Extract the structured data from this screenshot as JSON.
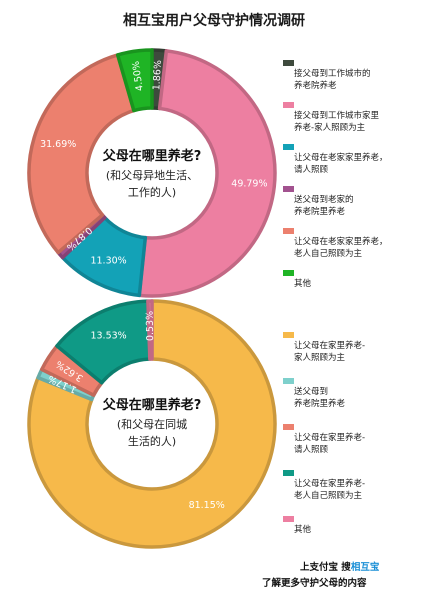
{
  "title": "相互宝用户父母守护情况调研",
  "chart_data": [
    {
      "type": "pie",
      "center_text": {
        "question": "父母在哪里养老?",
        "line1": "(和父母异地生活、",
        "line2": "工作的人)"
      },
      "slices": [
        {
          "label": "接父母到工作城市的\n养老院养老",
          "value": 1.86,
          "display": "1.86%",
          "color": "#3e4a3d"
        },
        {
          "label": "接父母到工作城市家里\n养老-家人照顾为主",
          "value": 49.79,
          "display": "49.79%",
          "color": "#ed7fa1"
        },
        {
          "label": "让父母在老家家里养老，\n请人照顾",
          "value": 11.3,
          "display": "11.30%",
          "color": "#13a2b7"
        },
        {
          "label": "送父母到老家的\n养老院里养老",
          "value": 0.87,
          "display": "0.87%",
          "color": "#a2528f"
        },
        {
          "label": "让父母在老家家里养老，\n老人自己照顾为主",
          "value": 31.69,
          "display": "31.69%",
          "color": "#ec806e"
        },
        {
          "label": "其他",
          "value": 4.5,
          "display": "4.50%",
          "color": "#1fb425"
        }
      ]
    },
    {
      "type": "pie",
      "center_text": {
        "question": "父母在哪里养老?",
        "line1": "(和父母在同城",
        "line2": "生活的人)"
      },
      "slices": [
        {
          "label": "让父母在家里养老-\n家人照顾为主",
          "value": 81.15,
          "display": "81.15%",
          "color": "#f6b94a"
        },
        {
          "label": "送父母到\n养老院里养老",
          "value": 1.17,
          "display": "1.17%",
          "color": "#7ed0cc"
        },
        {
          "label": "让父母在家里养老-\n请人照顾",
          "value": 3.62,
          "display": "3.62%",
          "color": "#ec806e"
        },
        {
          "label": "让父母在家里养老-\n老人自己照顾为主",
          "value": 13.53,
          "display": "13.53%",
          "color": "#0f9a86"
        },
        {
          "label": "其他",
          "value": 0.53,
          "display": "0.53%",
          "color": "#ed7fa1"
        }
      ]
    }
  ],
  "footer": {
    "line1_prefix": "上支付宝 搜",
    "brand": "相互宝",
    "line2": "了解更多守护父母的内容"
  }
}
